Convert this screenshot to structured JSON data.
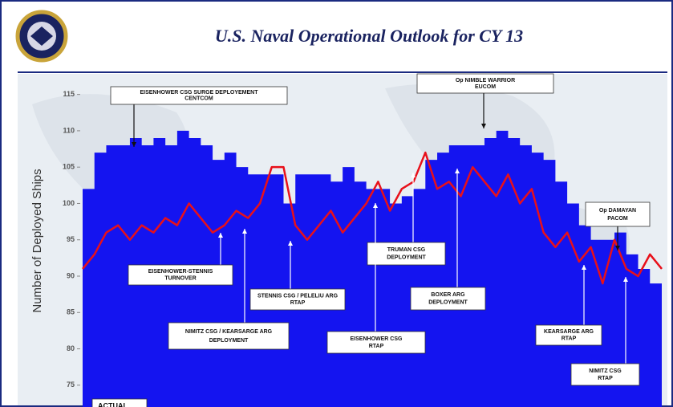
{
  "chart_data": {
    "type": "area",
    "title": "U.S. Naval Operational Outlook for CY 13",
    "y_label": "Number of Deployed Ships",
    "categories": [
      null,
      null,
      null,
      null,
      null,
      null,
      null,
      null,
      null,
      null,
      null,
      null,
      null,
      null,
      null,
      null,
      null,
      null,
      null,
      null,
      null,
      null,
      null,
      null,
      null,
      null,
      null,
      null,
      null,
      null,
      null,
      null,
      null,
      null,
      null,
      null,
      null,
      null,
      null,
      null,
      null,
      null,
      null,
      null,
      null,
      null,
      null,
      null,
      null,
      null
    ],
    "series": [
      {
        "color": "#1414f0",
        "values": [
          102,
          107,
          108,
          108,
          109,
          108,
          109,
          108,
          110,
          109,
          108,
          106,
          107,
          105,
          104,
          104,
          104,
          100,
          104,
          104,
          104,
          103,
          105,
          103,
          102,
          102,
          100,
          101,
          102,
          106,
          107,
          108,
          108,
          108,
          109,
          110,
          109,
          108,
          107,
          106,
          103,
          100,
          97,
          95,
          95,
          96,
          93,
          91,
          89,
          89
        ]
      },
      {
        "name": "ACTUAL",
        "color": "#e8101a",
        "values": [
          91,
          93,
          96,
          97,
          95,
          97,
          96,
          98,
          97,
          100,
          98,
          96,
          97,
          99,
          98,
          100,
          105,
          105,
          97,
          95,
          97,
          99,
          96,
          98,
          100,
          103,
          99,
          102,
          103,
          107,
          102,
          103,
          101,
          105,
          103,
          101,
          104,
          100,
          102,
          96,
          94,
          96,
          92,
          94,
          89,
          95,
          91,
          90,
          93,
          91
        ]
      }
    ],
    "ylim": [
      72,
      117.5
    ],
    "yticks": [
      75,
      80,
      85,
      90,
      95,
      100,
      105,
      110,
      115
    ],
    "annotations": [
      {
        "lines": [
          "EISENHOWER CSG SURGE DEPLOYEMENT",
          "CENTCOM"
        ]
      },
      {
        "lines": [
          "Op NIMBLE WARRIOR",
          "EUCOM"
        ]
      },
      {
        "lines": [
          "EISENHOWER-STENNIS",
          "TURNOVER"
        ]
      },
      {
        "lines": [
          "NIMITZ CSG / KEARSARGE ARG",
          "DEPLOYMENT"
        ]
      },
      {
        "lines": [
          "STENNIS CSG / PELELIU ARG",
          "RTAP"
        ]
      },
      {
        "lines": [
          "TRUMAN CSG",
          "DEPLOYMENT"
        ]
      },
      {
        "lines": [
          "EISENHOWER CSG",
          "RTAP"
        ]
      },
      {
        "lines": [
          "BOXER ARG",
          "DEPLOYMENT"
        ]
      },
      {
        "lines": [
          "Op DAMAYAN",
          "PACOM"
        ]
      },
      {
        "lines": [
          "KEARSARGE ARG",
          "RTAP"
        ]
      },
      {
        "lines": [
          "NIMITZ CSG",
          "RTAP"
        ]
      }
    ]
  }
}
